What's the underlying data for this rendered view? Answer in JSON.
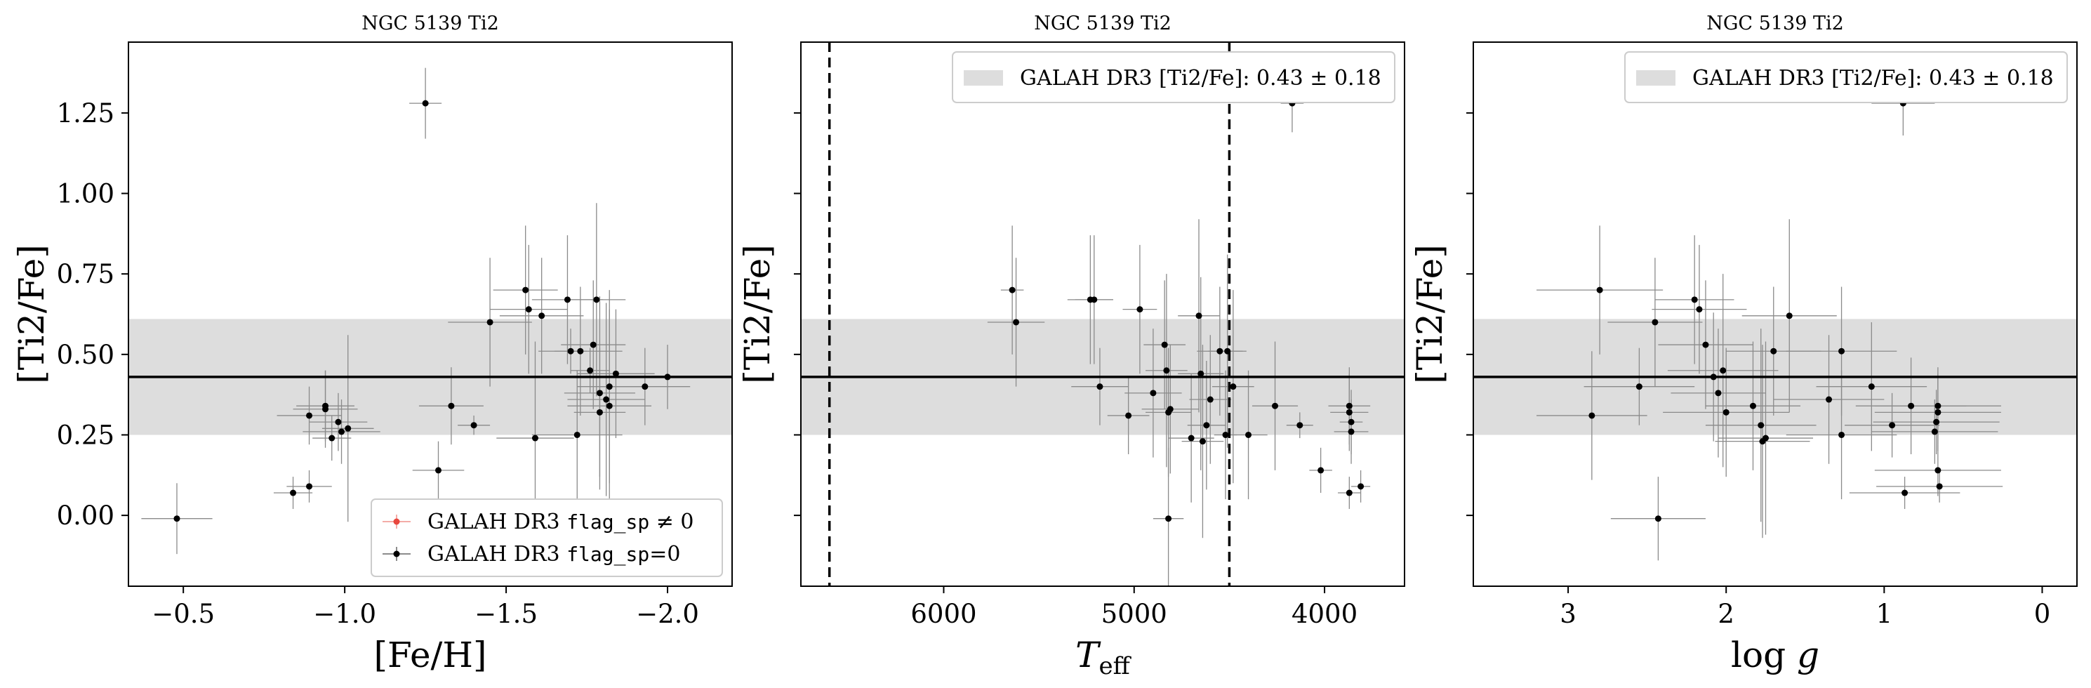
{
  "chart_data": [
    {
      "type": "scatter",
      "title": "NGC 5139 Ti2",
      "xlabel": "[Fe/H]",
      "ylabel": "[Ti2/Fe]",
      "xlim": [
        -0.33,
        -2.2
      ],
      "ylim": [
        -0.22,
        1.47
      ],
      "x_ticks": [
        -0.5,
        -1.0,
        -1.5,
        -2.0
      ],
      "x_tick_labels": [
        "−0.5",
        "−1.0",
        "−1.5",
        "−2.0"
      ],
      "y_ticks": [
        0.0,
        0.25,
        0.5,
        0.75,
        1.0,
        1.25
      ],
      "y_tick_labels": [
        "0.00",
        "0.25",
        "0.50",
        "0.75",
        "1.00",
        "1.25"
      ],
      "show_y_tick_labels": true,
      "band": {
        "center": 0.43,
        "sigma": 0.18
      },
      "vlines": [],
      "legend": {
        "position": "bottom-right",
        "entries": [
          {
            "prefix": "GALAH DR3 ",
            "code": "flag_sp",
            "suffix": " ≠ 0",
            "color": "#e8473e",
            "marker": "point"
          },
          {
            "prefix": "GALAH DR3 ",
            "code": "flag_sp",
            "suffix": "=0",
            "color": "#000000",
            "marker": "point"
          }
        ]
      },
      "points": [
        {
          "x": -0.48,
          "y": -0.01,
          "xerr": 0.11,
          "yerr": 0.11
        },
        {
          "x": -0.84,
          "y": 0.07,
          "xerr": 0.06,
          "yerr": 0.05
        },
        {
          "x": -0.89,
          "y": 0.09,
          "xerr": 0.07,
          "yerr": 0.05
        },
        {
          "x": -0.89,
          "y": 0.31,
          "xerr": 0.1,
          "yerr": 0.09
        },
        {
          "x": -0.94,
          "y": 0.33,
          "xerr": 0.1,
          "yerr": 0.12
        },
        {
          "x": -0.94,
          "y": 0.34,
          "xerr": 0.09,
          "yerr": 0.11
        },
        {
          "x": -0.96,
          "y": 0.24,
          "xerr": 0.06,
          "yerr": 0.07
        },
        {
          "x": -0.98,
          "y": 0.29,
          "xerr": 0.09,
          "yerr": 0.09
        },
        {
          "x": -0.99,
          "y": 0.26,
          "xerr": 0.12,
          "yerr": 0.1
        },
        {
          "x": -1.01,
          "y": 0.27,
          "xerr": 0.08,
          "yerr": 0.29
        },
        {
          "x": -1.25,
          "y": 1.28,
          "xerr": 0.05,
          "yerr": 0.11
        },
        {
          "x": -1.29,
          "y": 0.14,
          "xerr": 0.08,
          "yerr": 0.09
        },
        {
          "x": -1.33,
          "y": 0.34,
          "xerr": 0.1,
          "yerr": 0.12
        },
        {
          "x": -1.4,
          "y": 0.28,
          "xerr": 0.05,
          "yerr": 0.03
        },
        {
          "x": -1.45,
          "y": 0.6,
          "xerr": 0.13,
          "yerr": 0.2
        },
        {
          "x": -1.56,
          "y": 0.7,
          "xerr": 0.1,
          "yerr": 0.2
        },
        {
          "x": -1.57,
          "y": 0.64,
          "xerr": 0.12,
          "yerr": 0.2
        },
        {
          "x": -1.59,
          "y": 0.24,
          "xerr": 0.12,
          "yerr": 0.3
        },
        {
          "x": -1.61,
          "y": 0.62,
          "xerr": 0.13,
          "yerr": 0.18
        },
        {
          "x": -1.69,
          "y": 0.67,
          "xerr": 0.11,
          "yerr": 0.2
        },
        {
          "x": -1.7,
          "y": 0.51,
          "xerr": 0.05,
          "yerr": 0.07
        },
        {
          "x": -1.72,
          "y": 0.25,
          "xerr": 0.14,
          "yerr": 0.2
        },
        {
          "x": -1.73,
          "y": 0.51,
          "xerr": 0.13,
          "yerr": 0.2
        },
        {
          "x": -1.76,
          "y": 0.45,
          "xerr": 0.06,
          "yerr": 0.07
        },
        {
          "x": -1.77,
          "y": 0.53,
          "xerr": 0.1,
          "yerr": 0.2
        },
        {
          "x": -1.78,
          "y": 0.67,
          "xerr": 0.09,
          "yerr": 0.3
        },
        {
          "x": -1.79,
          "y": 0.32,
          "xerr": 0.08,
          "yerr": 0.2
        },
        {
          "x": -1.79,
          "y": 0.38,
          "xerr": 0.11,
          "yerr": 0.3
        },
        {
          "x": -1.81,
          "y": 0.36,
          "xerr": 0.12,
          "yerr": 0.3
        },
        {
          "x": -1.82,
          "y": 0.34,
          "xerr": 0.13,
          "yerr": 0.3
        },
        {
          "x": -1.82,
          "y": 0.4,
          "xerr": 0.1,
          "yerr": 0.3
        },
        {
          "x": -1.84,
          "y": 0.44,
          "xerr": 0.12,
          "yerr": 0.2
        },
        {
          "x": -1.93,
          "y": 0.4,
          "xerr": 0.14,
          "yerr": 0.12
        },
        {
          "x": -2.0,
          "y": 0.43,
          "xerr": 0.1,
          "yerr": 0.1
        }
      ]
    },
    {
      "type": "scatter",
      "title": "NGC 5139 Ti2",
      "xlabel": "T_eff",
      "ylabel": "[Ti2/Fe]",
      "xlim": [
        6750,
        3580
      ],
      "ylim": [
        -0.22,
        1.47
      ],
      "x_ticks": [
        6000,
        5000,
        4000
      ],
      "x_tick_labels": [
        "6000",
        "5000",
        "4000"
      ],
      "y_ticks": [
        0.0,
        0.25,
        0.5,
        0.75,
        1.0,
        1.25
      ],
      "y_tick_labels": [
        "0.00",
        "0.25",
        "0.50",
        "0.75",
        "1.00",
        "1.25"
      ],
      "show_y_tick_labels": false,
      "band": {
        "center": 0.43,
        "sigma": 0.18
      },
      "vlines": [
        6600,
        4500
      ],
      "legend": {
        "position": "top-right",
        "entries": [
          {
            "prefix": "GALAH DR3 [Ti2/Fe]: ",
            "code": "",
            "suffix": "0.43 ± 0.18",
            "color": "#dddddd",
            "marker": "band"
          }
        ]
      },
      "points": [
        {
          "x": 5640,
          "y": 0.7,
          "xerr": 60,
          "yerr": 0.2
        },
        {
          "x": 5620,
          "y": 0.6,
          "xerr": 150,
          "yerr": 0.2
        },
        {
          "x": 5230,
          "y": 0.67,
          "xerr": 120,
          "yerr": 0.2
        },
        {
          "x": 5210,
          "y": 0.67,
          "xerr": 100,
          "yerr": 0.2
        },
        {
          "x": 5180,
          "y": 0.4,
          "xerr": 150,
          "yerr": 0.12
        },
        {
          "x": 5030,
          "y": 0.31,
          "xerr": 110,
          "yerr": 0.12
        },
        {
          "x": 4970,
          "y": 0.64,
          "xerr": 90,
          "yerr": 0.2
        },
        {
          "x": 4900,
          "y": 0.38,
          "xerr": 150,
          "yerr": 0.2
        },
        {
          "x": 4840,
          "y": 0.53,
          "xerr": 110,
          "yerr": 0.2
        },
        {
          "x": 4830,
          "y": 0.45,
          "xerr": 110,
          "yerr": 0.3
        },
        {
          "x": 4820,
          "y": 0.32,
          "xerr": 120,
          "yerr": 0.2
        },
        {
          "x": 4810,
          "y": 0.33,
          "xerr": 150,
          "yerr": 0.2
        },
        {
          "x": 4820,
          "y": -0.01,
          "xerr": 80,
          "yerr": 0.22
        },
        {
          "x": 4700,
          "y": 0.24,
          "xerr": 120,
          "yerr": 0.2
        },
        {
          "x": 4660,
          "y": 0.62,
          "xerr": 110,
          "yerr": 0.3
        },
        {
          "x": 4650,
          "y": 0.44,
          "xerr": 120,
          "yerr": 0.3
        },
        {
          "x": 4640,
          "y": 0.23,
          "xerr": 110,
          "yerr": 0.3
        },
        {
          "x": 4620,
          "y": 0.28,
          "xerr": 100,
          "yerr": 0.2
        },
        {
          "x": 4600,
          "y": 0.36,
          "xerr": 110,
          "yerr": 0.2
        },
        {
          "x": 4550,
          "y": 0.51,
          "xerr": 120,
          "yerr": 0.2
        },
        {
          "x": 4510,
          "y": 0.51,
          "xerr": 100,
          "yerr": 0.3
        },
        {
          "x": 4520,
          "y": 0.25,
          "xerr": 60,
          "yerr": 0.2
        },
        {
          "x": 4480,
          "y": 0.4,
          "xerr": 110,
          "yerr": 0.3
        },
        {
          "x": 4400,
          "y": 0.25,
          "xerr": 100,
          "yerr": 0.2
        },
        {
          "x": 4260,
          "y": 0.34,
          "xerr": 120,
          "yerr": 0.2
        },
        {
          "x": 4170,
          "y": 1.28,
          "xerr": 60,
          "yerr": 0.09
        },
        {
          "x": 4130,
          "y": 0.28,
          "xerr": 70,
          "yerr": 0.04
        },
        {
          "x": 4020,
          "y": 0.14,
          "xerr": 60,
          "yerr": 0.07
        },
        {
          "x": 3870,
          "y": 0.34,
          "xerr": 110,
          "yerr": 0.12
        },
        {
          "x": 3870,
          "y": 0.32,
          "xerr": 100,
          "yerr": 0.12
        },
        {
          "x": 3860,
          "y": 0.29,
          "xerr": 60,
          "yerr": 0.1
        },
        {
          "x": 3860,
          "y": 0.26,
          "xerr": 90,
          "yerr": 0.1
        },
        {
          "x": 3870,
          "y": 0.07,
          "xerr": 60,
          "yerr": 0.05
        },
        {
          "x": 3810,
          "y": 0.09,
          "xerr": 50,
          "yerr": 0.05
        }
      ]
    },
    {
      "type": "scatter",
      "title": "NGC 5139 Ti2",
      "xlabel": "log g",
      "ylabel": "[Ti2/Fe]",
      "xlim": [
        3.6,
        -0.22
      ],
      "ylim": [
        -0.22,
        1.47
      ],
      "x_ticks": [
        3,
        2,
        1,
        0
      ],
      "x_tick_labels": [
        "3",
        "2",
        "1",
        "0"
      ],
      "y_ticks": [
        0.0,
        0.25,
        0.5,
        0.75,
        1.0,
        1.25
      ],
      "y_tick_labels": [
        "0.00",
        "0.25",
        "0.50",
        "0.75",
        "1.00",
        "1.25"
      ],
      "show_y_tick_labels": false,
      "band": {
        "center": 0.43,
        "sigma": 0.18
      },
      "vlines": [],
      "legend": {
        "position": "top-right",
        "entries": [
          {
            "prefix": "GALAH DR3 [Ti2/Fe]: ",
            "code": "",
            "suffix": "0.43 ± 0.18",
            "color": "#dddddd",
            "marker": "band"
          }
        ]
      },
      "points": [
        {
          "x": 2.85,
          "y": 0.31,
          "xerr": 0.35,
          "yerr": 0.2
        },
        {
          "x": 2.8,
          "y": 0.7,
          "xerr": 0.4,
          "yerr": 0.2
        },
        {
          "x": 2.55,
          "y": 0.4,
          "xerr": 0.35,
          "yerr": 0.12
        },
        {
          "x": 2.45,
          "y": 0.6,
          "xerr": 0.3,
          "yerr": 0.2
        },
        {
          "x": 2.43,
          "y": -0.01,
          "xerr": 0.3,
          "yerr": 0.13
        },
        {
          "x": 2.2,
          "y": 0.67,
          "xerr": 0.25,
          "yerr": 0.2
        },
        {
          "x": 2.17,
          "y": 0.64,
          "xerr": 0.3,
          "yerr": 0.2
        },
        {
          "x": 2.13,
          "y": 0.53,
          "xerr": 0.3,
          "yerr": 0.2
        },
        {
          "x": 2.08,
          "y": 0.43,
          "xerr": 0.35,
          "yerr": 0.2
        },
        {
          "x": 2.05,
          "y": 0.38,
          "xerr": 0.3,
          "yerr": 0.2
        },
        {
          "x": 2.02,
          "y": 0.45,
          "xerr": 0.35,
          "yerr": 0.3
        },
        {
          "x": 2.0,
          "y": 0.32,
          "xerr": 0.4,
          "yerr": 0.2
        },
        {
          "x": 1.83,
          "y": 0.34,
          "xerr": 0.3,
          "yerr": 0.2
        },
        {
          "x": 1.78,
          "y": 0.28,
          "xerr": 0.35,
          "yerr": 0.3
        },
        {
          "x": 1.77,
          "y": 0.23,
          "xerr": 0.3,
          "yerr": 0.3
        },
        {
          "x": 1.75,
          "y": 0.24,
          "xerr": 0.3,
          "yerr": 0.3
        },
        {
          "x": 1.7,
          "y": 0.51,
          "xerr": 0.3,
          "yerr": 0.2
        },
        {
          "x": 1.6,
          "y": 0.62,
          "xerr": 0.3,
          "yerr": 0.3
        },
        {
          "x": 1.35,
          "y": 0.36,
          "xerr": 0.35,
          "yerr": 0.2
        },
        {
          "x": 1.27,
          "y": 0.51,
          "xerr": 0.35,
          "yerr": 0.2
        },
        {
          "x": 1.27,
          "y": 0.25,
          "xerr": 0.35,
          "yerr": 0.2
        },
        {
          "x": 1.08,
          "y": 0.4,
          "xerr": 0.35,
          "yerr": 0.2
        },
        {
          "x": 0.95,
          "y": 0.28,
          "xerr": 0.3,
          "yerr": 0.1
        },
        {
          "x": 0.88,
          "y": 1.28,
          "xerr": 0.2,
          "yerr": 0.1
        },
        {
          "x": 0.87,
          "y": 0.07,
          "xerr": 0.35,
          "yerr": 0.05
        },
        {
          "x": 0.83,
          "y": 0.34,
          "xerr": 0.35,
          "yerr": 0.15
        },
        {
          "x": 0.66,
          "y": 0.34,
          "xerr": 0.4,
          "yerr": 0.12
        },
        {
          "x": 0.66,
          "y": 0.32,
          "xerr": 0.4,
          "yerr": 0.12
        },
        {
          "x": 0.67,
          "y": 0.29,
          "xerr": 0.4,
          "yerr": 0.1
        },
        {
          "x": 0.68,
          "y": 0.26,
          "xerr": 0.4,
          "yerr": 0.1
        },
        {
          "x": 0.66,
          "y": 0.14,
          "xerr": 0.4,
          "yerr": 0.08
        },
        {
          "x": 0.65,
          "y": 0.09,
          "xerr": 0.4,
          "yerr": 0.05
        }
      ]
    }
  ]
}
